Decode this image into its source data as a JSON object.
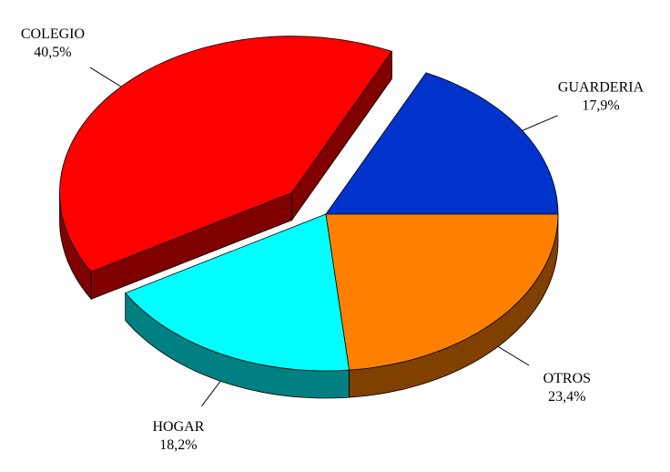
{
  "chart_data": {
    "type": "pie3d",
    "categories": [
      "GUARDERIA",
      "COLEGIO",
      "HOGAR",
      "OTROS"
    ],
    "values": [
      17.9,
      40.5,
      18.2,
      23.4
    ],
    "value_labels": [
      "17,9%",
      "40,5%",
      "18,2%",
      "23,4%"
    ],
    "colors": [
      "#0033cc",
      "#ff0000",
      "#00ffff",
      "#ff8000"
    ],
    "side_colors": [
      "#001a66",
      "#800000",
      "#008080",
      "#804000"
    ],
    "explode": [
      0,
      0.2,
      0,
      0
    ]
  }
}
